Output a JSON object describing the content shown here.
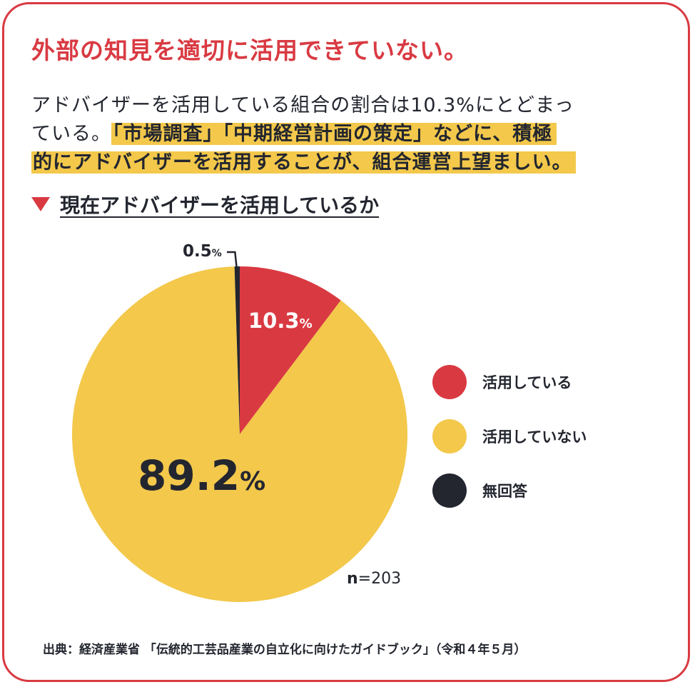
{
  "headline": "外部の知見を適切に活用できていない。",
  "body": {
    "line1": "アドバイザーを活用している組合の割合は10.3%にとどまっ",
    "line2_plain": "ている。",
    "line2_highlight": "「市場調査」「中期経営計画の策定」などに、積極",
    "line3_highlight": "的にアドバイザーを活用することが、組合運営上望ましい。"
  },
  "section_title": "現在アドバイザーを活用しているか",
  "colors": {
    "accent": "#d93a42",
    "highlight": "#f3c84b",
    "dark": "#23262f"
  },
  "chart_data": {
    "type": "pie",
    "title": "現在アドバイザーを活用しているか",
    "slices": [
      {
        "label": "活用している",
        "value": 10.3,
        "display": "10.3",
        "unit": "%",
        "color": "#d93a42"
      },
      {
        "label": "活用していない",
        "value": 89.2,
        "display": "89.2",
        "unit": "%",
        "color": "#f3c84b"
      },
      {
        "label": "無回答",
        "value": 0.5,
        "display": "0.5",
        "unit": "%",
        "color": "#23262f"
      }
    ],
    "n_label": "n",
    "n_value": "=203",
    "legend_position": "right"
  },
  "source": "出典：経済産業省 「伝統的工芸品産業の自立化に向けたガイドブック」（令和４年５月）"
}
